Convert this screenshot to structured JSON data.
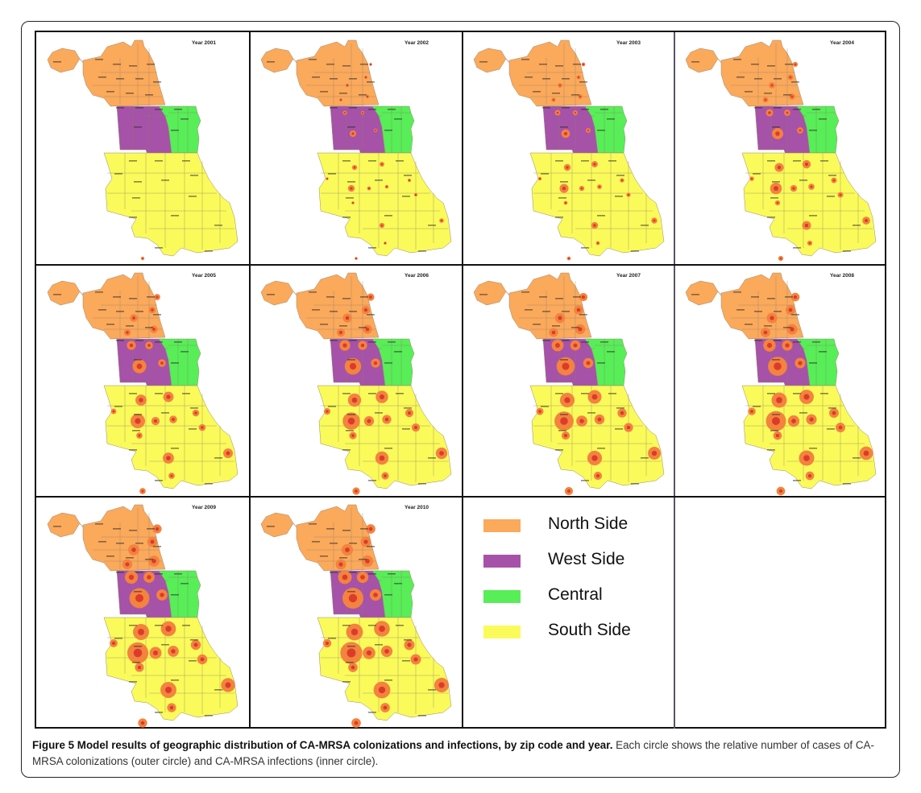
{
  "colors": {
    "north": "#FBA95B",
    "west": "#A652A8",
    "central": "#57EE57",
    "south": "#FAFA5A",
    "outer_circle": "#F3833E",
    "inner_circle": "#DC3B2A"
  },
  "panels": [
    {
      "year": "Year 2001",
      "level": 0.0
    },
    {
      "year": "Year 2002",
      "level": 0.18
    },
    {
      "year": "Year 2003",
      "level": 0.3
    },
    {
      "year": "Year 2004",
      "level": 0.45
    },
    {
      "year": "Year 2005",
      "level": 0.6
    },
    {
      "year": "Year 2006",
      "level": 0.75
    },
    {
      "year": "Year 2007",
      "level": 0.85
    },
    {
      "year": "Year 2008",
      "level": 0.9
    },
    {
      "year": "Year 2009",
      "level": 0.95
    },
    {
      "year": "Year 2010",
      "level": 1.0
    }
  ],
  "legend": [
    {
      "label": "North Side",
      "color": "#FBA95B"
    },
    {
      "label": "West Side",
      "color": "#A652A8"
    },
    {
      "label": "Central",
      "color": "#57EE57"
    },
    {
      "label": "South Side",
      "color": "#FAFA5A"
    }
  ],
  "caption": {
    "bold": "Figure 5 Model results of geographic distribution of CA-MRSA colonizations and infections, by zip code and year.",
    "text": " Each circle shows the relative number of cases of CA-MRSA colonizations (outer circle) and CA-MRSA infections (inner circle)."
  }
}
